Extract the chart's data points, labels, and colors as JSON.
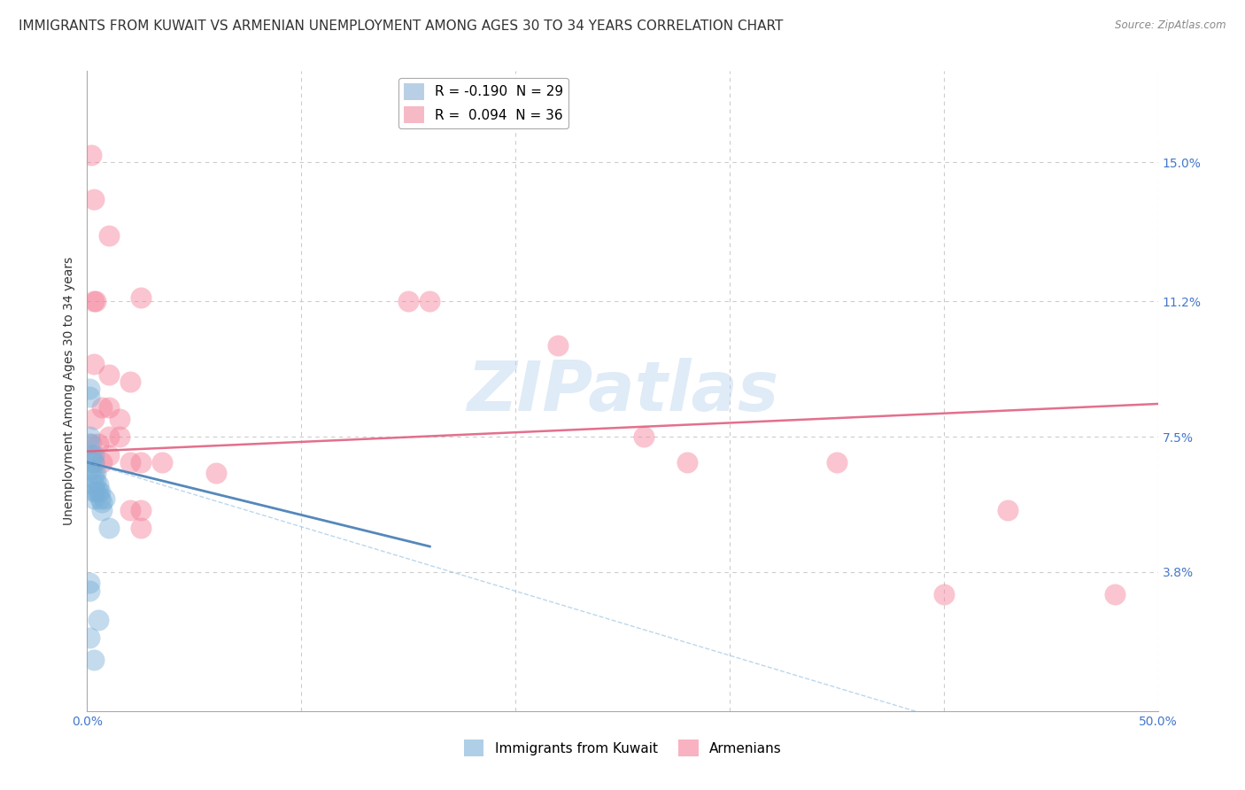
{
  "title": "IMMIGRANTS FROM KUWAIT VS ARMENIAN UNEMPLOYMENT AMONG AGES 30 TO 34 YEARS CORRELATION CHART",
  "source": "Source: ZipAtlas.com",
  "ylabel": "Unemployment Among Ages 30 to 34 years",
  "xlim": [
    0.0,
    0.5
  ],
  "ylim": [
    0.0,
    0.175
  ],
  "ytick_positions": [
    0.038,
    0.075,
    0.112,
    0.15
  ],
  "ytick_labels": [
    "3.8%",
    "7.5%",
    "11.2%",
    "15.0%"
  ],
  "legend_entries": [
    {
      "label": "R = -0.190  N = 29",
      "color": "#a8c4e0"
    },
    {
      "label": "R =  0.094  N = 36",
      "color": "#f4a8b8"
    }
  ],
  "kuwait_points": [
    [
      0.001,
      0.088
    ],
    [
      0.001,
      0.086
    ],
    [
      0.001,
      0.075
    ],
    [
      0.001,
      0.073
    ],
    [
      0.002,
      0.07
    ],
    [
      0.002,
      0.068
    ],
    [
      0.002,
      0.066
    ],
    [
      0.003,
      0.07
    ],
    [
      0.003,
      0.068
    ],
    [
      0.003,
      0.065
    ],
    [
      0.003,
      0.062
    ],
    [
      0.003,
      0.06
    ],
    [
      0.003,
      0.058
    ],
    [
      0.004,
      0.065
    ],
    [
      0.004,
      0.063
    ],
    [
      0.004,
      0.06
    ],
    [
      0.005,
      0.062
    ],
    [
      0.005,
      0.06
    ],
    [
      0.006,
      0.06
    ],
    [
      0.006,
      0.058
    ],
    [
      0.007,
      0.057
    ],
    [
      0.007,
      0.055
    ],
    [
      0.008,
      0.058
    ],
    [
      0.01,
      0.05
    ],
    [
      0.001,
      0.035
    ],
    [
      0.001,
      0.033
    ],
    [
      0.001,
      0.02
    ],
    [
      0.005,
      0.025
    ],
    [
      0.003,
      0.014
    ]
  ],
  "armenian_points": [
    [
      0.002,
      0.152
    ],
    [
      0.003,
      0.14
    ],
    [
      0.01,
      0.13
    ],
    [
      0.003,
      0.112
    ],
    [
      0.004,
      0.112
    ],
    [
      0.025,
      0.113
    ],
    [
      0.003,
      0.095
    ],
    [
      0.01,
      0.092
    ],
    [
      0.02,
      0.09
    ],
    [
      0.003,
      0.08
    ],
    [
      0.007,
      0.083
    ],
    [
      0.01,
      0.083
    ],
    [
      0.015,
      0.08
    ],
    [
      0.002,
      0.073
    ],
    [
      0.005,
      0.073
    ],
    [
      0.01,
      0.075
    ],
    [
      0.015,
      0.075
    ],
    [
      0.003,
      0.068
    ],
    [
      0.007,
      0.068
    ],
    [
      0.01,
      0.07
    ],
    [
      0.02,
      0.068
    ],
    [
      0.025,
      0.068
    ],
    [
      0.035,
      0.068
    ],
    [
      0.02,
      0.055
    ],
    [
      0.025,
      0.055
    ],
    [
      0.025,
      0.05
    ],
    [
      0.06,
      0.065
    ],
    [
      0.15,
      0.112
    ],
    [
      0.16,
      0.112
    ],
    [
      0.22,
      0.1
    ],
    [
      0.26,
      0.075
    ],
    [
      0.28,
      0.068
    ],
    [
      0.35,
      0.068
    ],
    [
      0.4,
      0.032
    ],
    [
      0.43,
      0.055
    ],
    [
      0.48,
      0.032
    ]
  ],
  "kuwait_trend_x": [
    0.0,
    0.16
  ],
  "kuwait_trend_y": [
    0.068,
    0.045
  ],
  "armenian_trend_x": [
    0.0,
    0.5
  ],
  "armenian_trend_y": [
    0.071,
    0.084
  ],
  "kuwait_color": "#7ab0d8",
  "armenian_color": "#f48098",
  "kuwait_trend_color": "#5588bb",
  "armenian_trend_color": "#e06080",
  "background_color": "#ffffff",
  "grid_color": "#cccccc",
  "watermark": "ZIPatlas",
  "title_fontsize": 11,
  "axis_label_fontsize": 10,
  "tick_fontsize": 10,
  "tick_color": "#4477cc"
}
